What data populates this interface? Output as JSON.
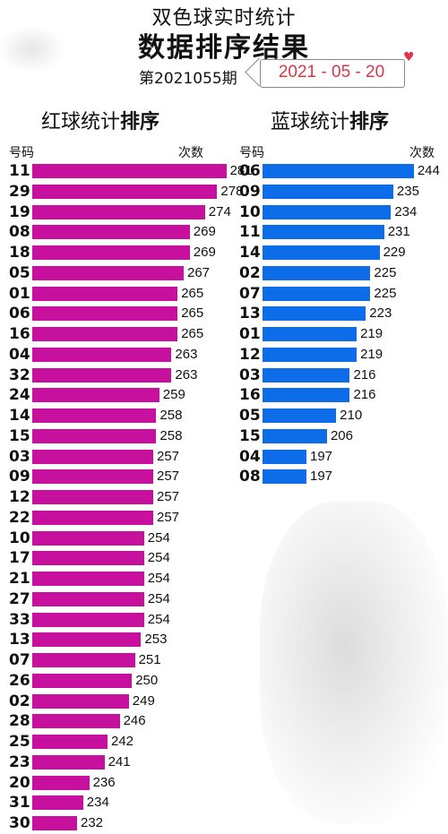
{
  "header": {
    "title": "双色球实时统计",
    "subtitle": "数据排序结果",
    "issue": "第2021055期",
    "date": "2021 - 05 - 20"
  },
  "colors": {
    "red_bar": "#c8109e",
    "blue_bar": "#0d6ce8",
    "date_text": "#d03a4a"
  },
  "chart_data": [
    {
      "type": "bar",
      "title_plain": "红球统计",
      "title_bold": "排序",
      "xlabel": "号码",
      "ylabel": "次数",
      "categories": [
        "11",
        "29",
        "19",
        "08",
        "18",
        "05",
        "01",
        "06",
        "16",
        "04",
        "32",
        "24",
        "14",
        "15",
        "03",
        "09",
        "12",
        "22",
        "10",
        "17",
        "21",
        "27",
        "33",
        "13",
        "07",
        "26",
        "02",
        "28",
        "25",
        "23",
        "20",
        "31",
        "30"
      ],
      "values": [
        281,
        278,
        274,
        269,
        269,
        267,
        265,
        265,
        265,
        263,
        263,
        259,
        258,
        258,
        257,
        257,
        257,
        257,
        254,
        254,
        254,
        254,
        254,
        253,
        251,
        250,
        249,
        246,
        242,
        241,
        236,
        234,
        232
      ]
    },
    {
      "type": "bar",
      "title_plain": "蓝球统计",
      "title_bold": "排序",
      "xlabel": "号码",
      "ylabel": "次数",
      "categories": [
        "06",
        "09",
        "10",
        "11",
        "14",
        "02",
        "07",
        "13",
        "01",
        "12",
        "03",
        "16",
        "05",
        "15",
        "04",
        "08"
      ],
      "values": [
        244,
        235,
        234,
        231,
        229,
        225,
        225,
        223,
        219,
        219,
        216,
        216,
        210,
        206,
        197,
        197
      ]
    }
  ]
}
